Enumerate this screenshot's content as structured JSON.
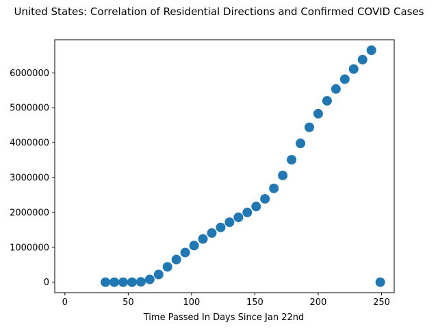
{
  "chart_data": {
    "type": "scatter",
    "title": "United States: Correlation of Residential Directions and Confirmed COVID Cases",
    "xlabel": "Time Passed In Days Since Jan 22nd",
    "ylabel": "",
    "xlim": [
      -8,
      260
    ],
    "ylim": [
      -300000,
      6950000
    ],
    "x_ticks": [
      0,
      50,
      100,
      150,
      200,
      250
    ],
    "x_tick_labels": [
      "0",
      "50",
      "100",
      "150",
      "200",
      "250"
    ],
    "y_ticks": [
      0,
      1000000,
      2000000,
      3000000,
      4000000,
      5000000,
      6000000
    ],
    "y_tick_labels": [
      "0",
      "1000000",
      "2000000",
      "3000000",
      "4000000",
      "5000000",
      "6000000"
    ],
    "grid": false,
    "color": "#1f77b4",
    "x": [
      32,
      39,
      46,
      53,
      60,
      67,
      74,
      81,
      88,
      95,
      102,
      109,
      116,
      123,
      130,
      137,
      144,
      151,
      158,
      165,
      172,
      179,
      186,
      193,
      200,
      207,
      214,
      221,
      228,
      235,
      242,
      249
    ],
    "y": [
      0,
      0,
      0,
      0,
      10000,
      80000,
      220000,
      440000,
      650000,
      850000,
      1050000,
      1240000,
      1410000,
      1570000,
      1720000,
      1860000,
      2000000,
      2170000,
      2390000,
      2690000,
      3060000,
      3510000,
      3980000,
      4440000,
      4830000,
      5200000,
      5540000,
      5820000,
      6110000,
      6380000,
      6650000,
      0
    ]
  }
}
